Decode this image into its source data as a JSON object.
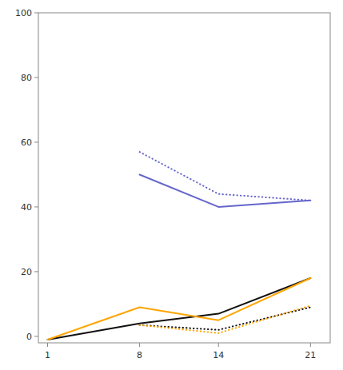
{
  "chart_data": {
    "type": "line",
    "x": [
      1,
      8,
      14,
      21
    ],
    "series": [
      {
        "color": "#6666cc",
        "line_style": "solid",
        "values": [
          null,
          50,
          40,
          42
        ]
      },
      {
        "color": "#6666cc",
        "line_style": "dotted",
        "values": [
          null,
          57,
          44,
          42
        ]
      },
      {
        "color": "#111111",
        "line_style": "solid",
        "values": [
          -1,
          4,
          7,
          18
        ]
      },
      {
        "color": "#FFA500",
        "line_style": "solid",
        "values": [
          -1,
          9,
          5,
          18
        ]
      },
      {
        "color": "#111111",
        "line_style": "dotted",
        "values": [
          null,
          3.5,
          2,
          9
        ]
      },
      {
        "color": "#FFA500",
        "line_style": "dotted",
        "values": [
          null,
          3.5,
          1,
          9.5
        ]
      }
    ],
    "xlim": [
      0.3,
      22.5
    ],
    "xticks": [
      1,
      8,
      14,
      21
    ],
    "ylim": [
      -2,
      100
    ],
    "yticks": [
      0,
      20,
      40,
      60,
      80,
      100
    ],
    "grid": false
  }
}
